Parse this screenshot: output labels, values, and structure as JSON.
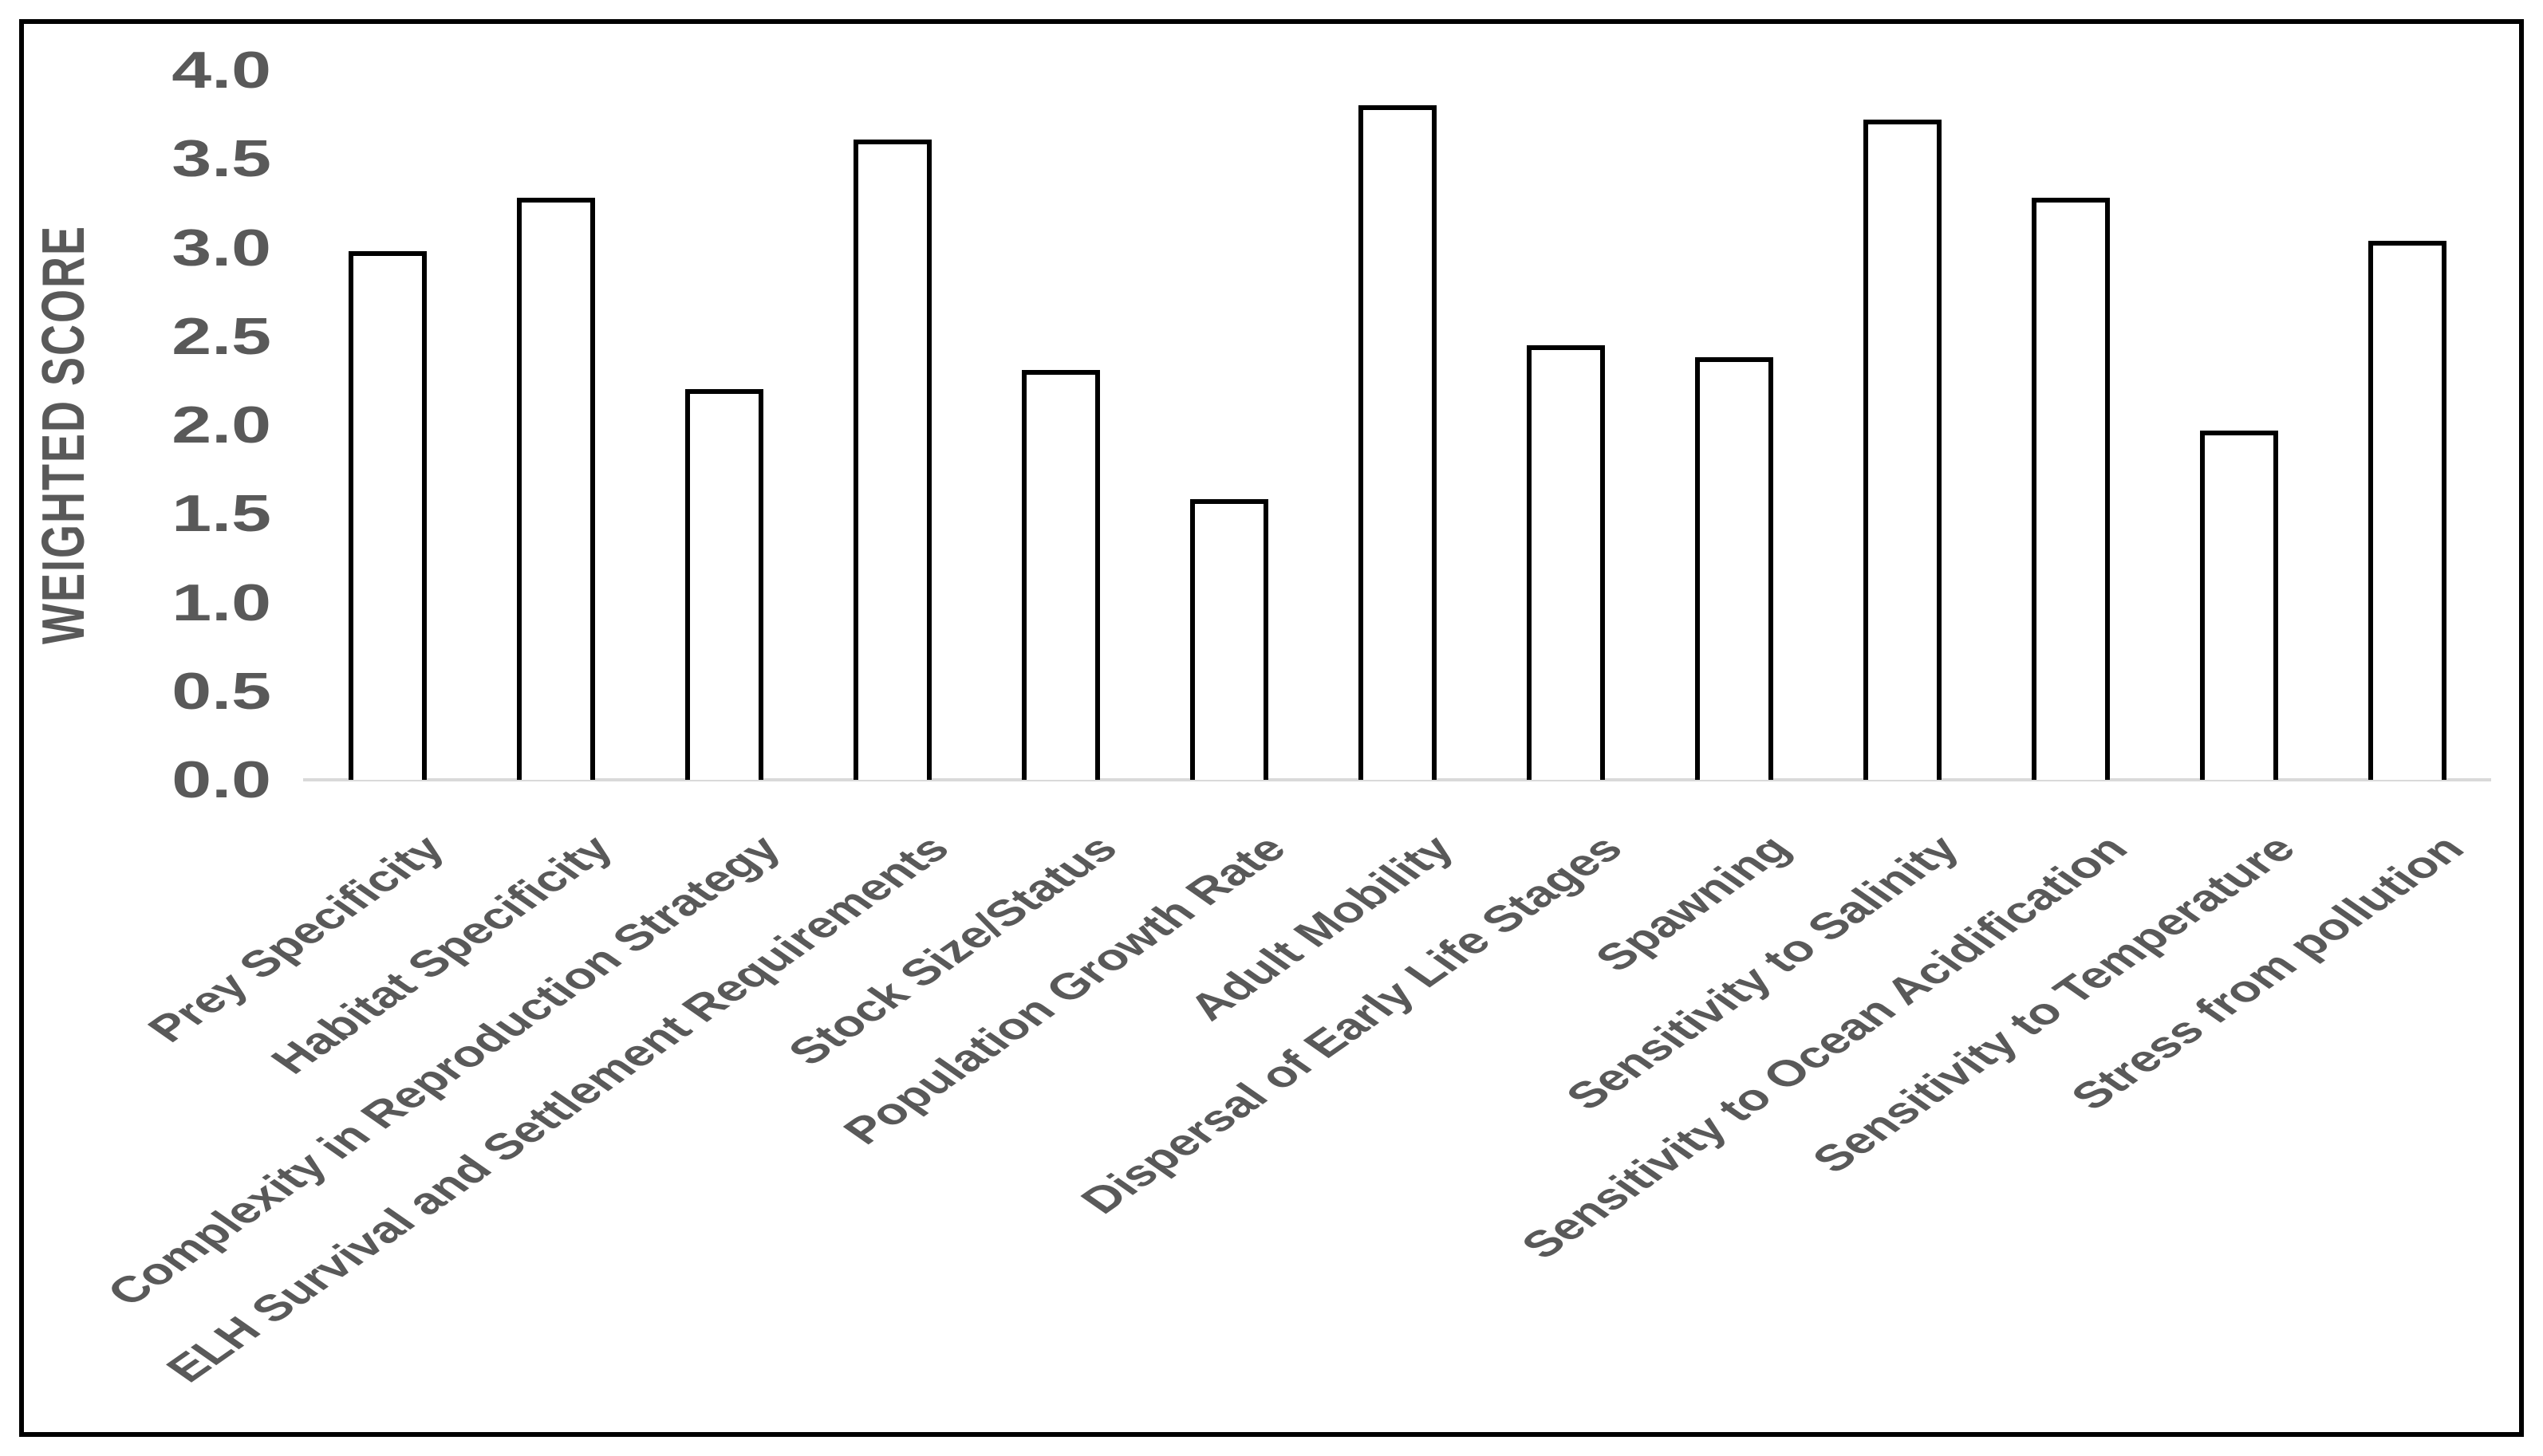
{
  "chart_data": {
    "type": "bar",
    "title": "",
    "xlabel": "",
    "ylabel": "WEIGHTED SCORE",
    "categories": [
      "Prey Specificity",
      "Habitat Specificity",
      "Complexity in Reproduction Strategy",
      "ELH Survival and Settlement Requirements",
      "Stock Size/Status",
      "Population Growth Rate",
      "Adult Mobility",
      "Dispersal of Early Life Stages",
      "Spawning",
      "Sensitivity to Salinity",
      "Sensitivity to Ocean Acidification",
      "Sensitivity to Temperature",
      "Stress from pollution"
    ],
    "values": [
      2.98,
      3.28,
      2.2,
      3.61,
      2.31,
      1.58,
      3.8,
      2.45,
      2.38,
      3.72,
      3.28,
      1.97,
      3.04
    ],
    "ylim": [
      0,
      4
    ],
    "ytick_step": 0.5,
    "ytick_labels": [
      "0.0",
      "0.5",
      "1.0",
      "1.5",
      "2.0",
      "2.5",
      "3.0",
      "3.5",
      "4.0"
    ],
    "grid": "off",
    "legend": "none",
    "x_label_rotation_deg": 45,
    "bar_fill_color": "#ffffff",
    "bar_border_color": "#000000",
    "axis_line_color": "#d9d9d9",
    "text_color": "#595959",
    "frame_border_color": "#000000",
    "background_color": "#ffffff"
  }
}
